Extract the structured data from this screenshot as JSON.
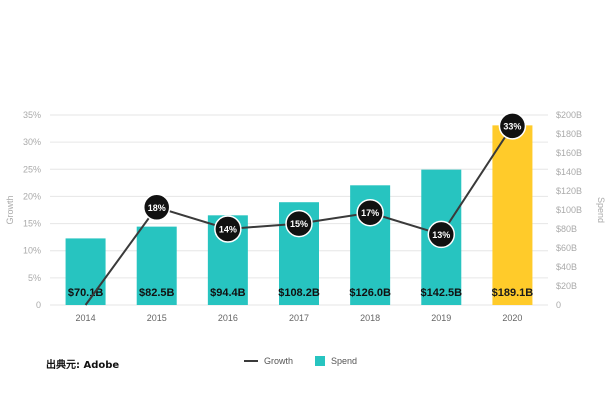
{
  "source_label": "出典元: Adobe",
  "colors": {
    "bar": "#27c4c0",
    "bar_highlight": "#ffcb2a",
    "line": "#3a3a3a",
    "bubble": "#111111",
    "axis_text": "#aaaaaa",
    "grid": "#e6e6e6"
  },
  "chart_data": {
    "type": "bar",
    "categories": [
      "2014",
      "2015",
      "2016",
      "2017",
      "2018",
      "2019",
      "2020"
    ],
    "series": [
      {
        "name": "Spend",
        "type": "bar",
        "axis": "right",
        "values": [
          70.1,
          82.5,
          94.4,
          108.2,
          126.0,
          142.5,
          189.1
        ],
        "data_labels": [
          "$70.1B",
          "$82.5B",
          "$94.4B",
          "$108.2B",
          "$126.0B",
          "$142.5B",
          "$189.1B"
        ],
        "highlight_index": 6
      },
      {
        "name": "Growth",
        "type": "line",
        "axis": "left",
        "values": [
          0,
          18,
          14,
          15,
          17,
          13,
          33
        ],
        "data_labels": [
          "",
          "18%",
          "14%",
          "15%",
          "17%",
          "13%",
          "33%"
        ]
      }
    ],
    "y_left": {
      "label": "Growth",
      "range": [
        0,
        35
      ],
      "ticks": [
        "0",
        "5%",
        "10%",
        "15%",
        "20%",
        "25%",
        "30%",
        "35%"
      ]
    },
    "y_right": {
      "label": "Spend",
      "range": [
        0,
        200
      ],
      "ticks": [
        "0",
        "$20B",
        "$40B",
        "$60B",
        "$80B",
        "$100B",
        "$120B",
        "$140B",
        "$160B",
        "$180B",
        "$200B"
      ]
    },
    "legend": {
      "position": "bottom",
      "items": [
        "Growth",
        "Spend"
      ]
    },
    "grid": true
  }
}
